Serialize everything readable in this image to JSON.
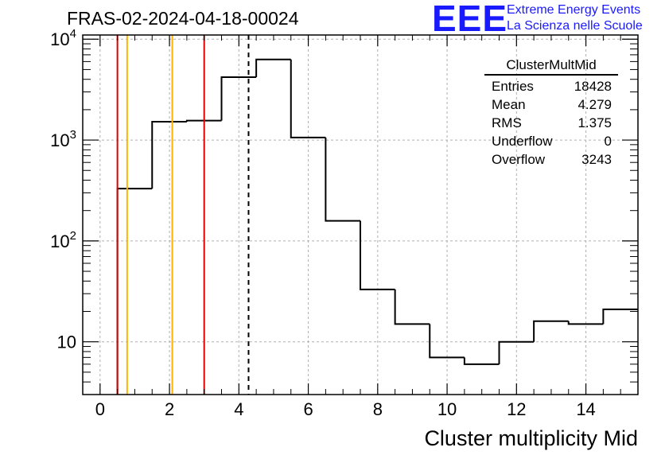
{
  "header": {
    "title": "FRAS-02-2024-04-18-00024",
    "logo_mark": "EEE",
    "logo_line1": "Extreme Energy Events",
    "logo_line2": "La Scienza nelle Scuole"
  },
  "stats": {
    "name": "ClusterMultMid",
    "rows": [
      {
        "label": "Entries",
        "value": "18428"
      },
      {
        "label": "Mean",
        "value": "4.279"
      },
      {
        "label": "RMS",
        "value": "1.375"
      },
      {
        "label": "Underflow",
        "value": "0"
      },
      {
        "label": "Overflow",
        "value": "3243"
      }
    ]
  },
  "chart_data": {
    "type": "histogram",
    "xlabel": "Cluster multiplicity Mid",
    "ylabel": "",
    "xlim": [
      -0.5,
      15.5
    ],
    "ylim": [
      3,
      11000
    ],
    "yscale": "log",
    "grid": true,
    "x_ticks": [
      0,
      2,
      4,
      6,
      8,
      10,
      12,
      14
    ],
    "x_tick_labels": [
      "0",
      "2",
      "4",
      "6",
      "8",
      "10",
      "12",
      "14"
    ],
    "y_ticks": [
      10,
      100,
      1000,
      10000
    ],
    "bins": [
      {
        "low": 0.5,
        "high": 1.5,
        "value": 330
      },
      {
        "low": 1.5,
        "high": 2.5,
        "value": 1520
      },
      {
        "low": 2.5,
        "high": 3.5,
        "value": 1560
      },
      {
        "low": 3.5,
        "high": 4.5,
        "value": 4200
      },
      {
        "low": 4.5,
        "high": 5.5,
        "value": 6300
      },
      {
        "low": 5.5,
        "high": 6.5,
        "value": 1060
      },
      {
        "low": 6.5,
        "high": 7.5,
        "value": 158
      },
      {
        "low": 7.5,
        "high": 8.5,
        "value": 33
      },
      {
        "low": 8.5,
        "high": 9.5,
        "value": 15
      },
      {
        "low": 9.5,
        "high": 10.5,
        "value": 7
      },
      {
        "low": 10.5,
        "high": 11.5,
        "value": 6
      },
      {
        "low": 11.5,
        "high": 12.5,
        "value": 10
      },
      {
        "low": 12.5,
        "high": 13.5,
        "value": 16
      },
      {
        "low": 13.5,
        "high": 14.5,
        "value": 15
      },
      {
        "low": 14.5,
        "high": 15.5,
        "value": 21
      }
    ],
    "vertical_lines": [
      {
        "x": 0.5,
        "color": "#e00000",
        "style": "solid"
      },
      {
        "x": 0.78,
        "color": "#ffb300",
        "style": "solid"
      },
      {
        "x": 2.08,
        "color": "#ffb300",
        "style": "solid"
      },
      {
        "x": 3.0,
        "color": "#e00000",
        "style": "solid"
      },
      {
        "x": 4.279,
        "color": "#000000",
        "style": "dashed"
      }
    ]
  }
}
